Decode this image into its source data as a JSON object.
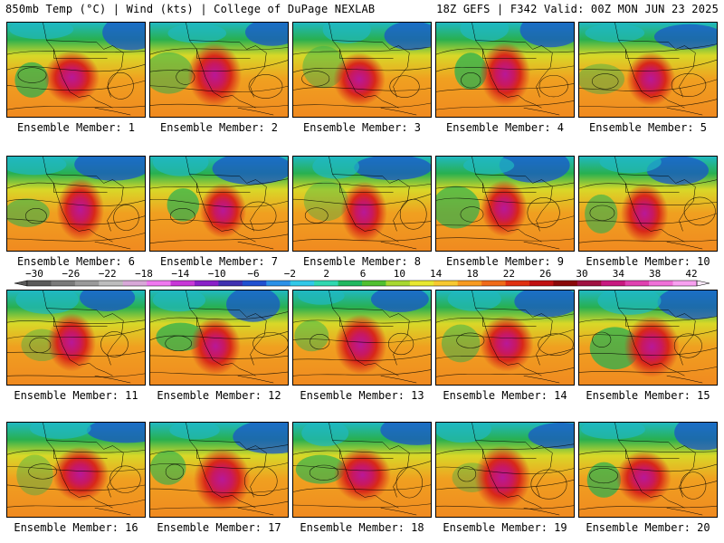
{
  "header": {
    "left": "850mb Temp (°C) | Wind (kts) | College of DuPage NEXLAB",
    "right": "18Z GEFS | F342 Valid: 00Z MON JUN 23 2025"
  },
  "panels": [
    {
      "label": "Ensemble Member: 1"
    },
    {
      "label": "Ensemble Member: 2"
    },
    {
      "label": "Ensemble Member: 3"
    },
    {
      "label": "Ensemble Member: 4"
    },
    {
      "label": "Ensemble Member: 5"
    },
    {
      "label": "Ensemble Member: 6"
    },
    {
      "label": "Ensemble Member: 7"
    },
    {
      "label": "Ensemble Member: 8"
    },
    {
      "label": "Ensemble Member: 9"
    },
    {
      "label": "Ensemble Member: 10"
    },
    {
      "label": "Ensemble Member: 11"
    },
    {
      "label": "Ensemble Member: 12"
    },
    {
      "label": "Ensemble Member: 13"
    },
    {
      "label": "Ensemble Member: 14"
    },
    {
      "label": "Ensemble Member: 15"
    },
    {
      "label": "Ensemble Member: 16"
    },
    {
      "label": "Ensemble Member: 17"
    },
    {
      "label": "Ensemble Member: 18"
    },
    {
      "label": "Ensemble Member: 19"
    },
    {
      "label": "Ensemble Member: 20"
    }
  ],
  "colorbar": {
    "ticks": [
      "−30",
      "−26",
      "−22",
      "−18",
      "−14",
      "−10",
      "−6",
      "−2",
      "2",
      "6",
      "10",
      "14",
      "18",
      "22",
      "26",
      "30",
      "34",
      "38",
      "42"
    ],
    "colors": [
      "#5a5a5a",
      "#7a7a7a",
      "#9a9a9a",
      "#bdbdbd",
      "#d8a8d8",
      "#f078f0",
      "#c838d8",
      "#8a20c8",
      "#4030b0",
      "#2050d0",
      "#2a90e8",
      "#30c8e8",
      "#30d8b0",
      "#20b860",
      "#50c030",
      "#a8d830",
      "#e8e830",
      "#f8c830",
      "#f89a20",
      "#f06a18",
      "#e03010",
      "#c01010",
      "#8a0808",
      "#a01040",
      "#c81880",
      "#e040b0",
      "#f070d8",
      "#f8a0f0"
    ],
    "tick_color_pink": "#ff00ff"
  },
  "map_colors": {
    "cold": "#1a55c8",
    "cool": "#20b8c0",
    "mild": "#28b050",
    "warm_yellow": "#d8d828",
    "warm_orange": "#f0a020",
    "hot_red": "#d82818",
    "extreme_magenta": "#b81898"
  }
}
